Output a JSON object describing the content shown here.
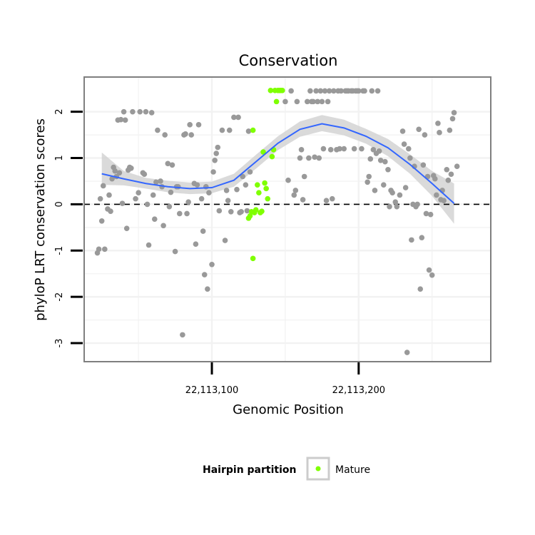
{
  "chart_data": {
    "type": "scatter",
    "title": "Conservation",
    "xlabel": "Genomic Position",
    "ylabel": "phyloP LRT conservation scores",
    "xlim": [
      22113013,
      22113290
    ],
    "ylim": [
      -3.4,
      2.75
    ],
    "x_ticks": [
      {
        "value": 22113100,
        "label": "22,113,100"
      },
      {
        "value": 22113200,
        "label": "22,113,200"
      }
    ],
    "y_ticks": [
      {
        "value": 2,
        "label": "2"
      },
      {
        "value": 1,
        "label": "1"
      },
      {
        "value": 0,
        "label": "0"
      },
      {
        "value": -1,
        "label": "-1"
      },
      {
        "value": -2,
        "label": "-2"
      },
      {
        "value": -3,
        "label": "-3"
      }
    ],
    "grid": true,
    "reference_line": {
      "y": 0,
      "style": "dashed"
    },
    "legend": {
      "title": "Hairpin partition",
      "position": "bottom",
      "entries": [
        {
          "label": "Mature",
          "color": "#7fff00"
        }
      ]
    },
    "colors": {
      "other": "#999999",
      "mature": "#7fff00",
      "smooth": "#3366ff",
      "ribbon": "#d3d3d3",
      "panel_border": "#7f7f7f"
    },
    "smooth": {
      "x": [
        22113025,
        22113040,
        22113055,
        22113070,
        22113085,
        22113100,
        22113115,
        22113130,
        22113145,
        22113160,
        22113175,
        22113190,
        22113205,
        22113220,
        22113235,
        22113250,
        22113265
      ],
      "y": [
        0.66,
        0.55,
        0.45,
        0.38,
        0.34,
        0.36,
        0.52,
        0.92,
        1.32,
        1.62,
        1.74,
        1.65,
        1.47,
        1.22,
        0.86,
        0.45,
        0.02
      ],
      "lower": [
        0.42,
        0.41,
        0.34,
        0.26,
        0.22,
        0.24,
        0.38,
        0.77,
        1.17,
        1.46,
        1.58,
        1.49,
        1.31,
        1.04,
        0.66,
        0.18,
        -0.42
      ],
      "upper": [
        1.12,
        0.72,
        0.57,
        0.51,
        0.47,
        0.49,
        0.66,
        1.07,
        1.47,
        1.79,
        1.93,
        1.83,
        1.63,
        1.41,
        1.08,
        0.72,
        0.45
      ]
    },
    "series": [
      {
        "name": "Mature",
        "color": "#7fff00",
        "points": [
          [
            22113128,
            1.6
          ],
          [
            22113131,
            0.42
          ],
          [
            22113132,
            0.25
          ],
          [
            22113135,
            1.13
          ],
          [
            22113136,
            0.46
          ],
          [
            22113137,
            0.34
          ],
          [
            22113138,
            0.12
          ],
          [
            22113141,
            1.03
          ],
          [
            22113142,
            1.18
          ],
          [
            22113144,
            2.22
          ],
          [
            22113145,
            2.46
          ],
          [
            22113127,
            -0.16
          ],
          [
            22113129,
            -0.18
          ],
          [
            22113130,
            -0.12
          ],
          [
            22113133,
            -0.18
          ],
          [
            22113134,
            -0.15
          ],
          [
            22113125,
            -0.3
          ],
          [
            22113126,
            -0.25
          ],
          [
            22113128,
            -1.17
          ],
          [
            22113140,
            2.46
          ],
          [
            22113143,
            2.46
          ],
          [
            22113146,
            2.46
          ],
          [
            22113147,
            2.46
          ],
          [
            22113148,
            2.46
          ]
        ]
      },
      {
        "name": "",
        "color": "#999999",
        "points": [
          [
            22113022,
            -1.05
          ],
          [
            22113023,
            -0.97
          ],
          [
            22113024,
            0.12
          ],
          [
            22113025,
            -0.36
          ],
          [
            22113026,
            0.4
          ],
          [
            22113027,
            -0.97
          ],
          [
            22113029,
            -0.1
          ],
          [
            22113030,
            0.2
          ],
          [
            22113031,
            -0.15
          ],
          [
            22113032,
            0.55
          ],
          [
            22113033,
            0.8
          ],
          [
            22113034,
            0.72
          ],
          [
            22113035,
            0.6
          ],
          [
            22113036,
            1.82
          ],
          [
            22113037,
            0.68
          ],
          [
            22113038,
            1.83
          ],
          [
            22113039,
            0.02
          ],
          [
            22113040,
            2.0
          ],
          [
            22113041,
            1.82
          ],
          [
            22113042,
            -0.52
          ],
          [
            22113043,
            0.74
          ],
          [
            22113044,
            0.8
          ],
          [
            22113045,
            0.78
          ],
          [
            22113046,
            2.0
          ],
          [
            22113048,
            0.12
          ],
          [
            22113050,
            0.25
          ],
          [
            22113051,
            2.0
          ],
          [
            22113053,
            0.68
          ],
          [
            22113054,
            0.65
          ],
          [
            22113055,
            2.0
          ],
          [
            22113056,
            0.0
          ],
          [
            22113057,
            -0.88
          ],
          [
            22113059,
            1.98
          ],
          [
            22113060,
            0.2
          ],
          [
            22113061,
            -0.32
          ],
          [
            22113062,
            0.48
          ],
          [
            22113063,
            1.6
          ],
          [
            22113065,
            0.5
          ],
          [
            22113066,
            0.38
          ],
          [
            22113067,
            -0.46
          ],
          [
            22113068,
            1.5
          ],
          [
            22113070,
            0.88
          ],
          [
            22113071,
            -0.05
          ],
          [
            22113072,
            0.26
          ],
          [
            22113073,
            0.85
          ],
          [
            22113075,
            -1.02
          ],
          [
            22113076,
            0.38
          ],
          [
            22113077,
            0.38
          ],
          [
            22113078,
            -0.2
          ],
          [
            22113080,
            -2.82
          ],
          [
            22113081,
            1.5
          ],
          [
            22113082,
            1.52
          ],
          [
            22113083,
            -0.2
          ],
          [
            22113084,
            0.05
          ],
          [
            22113085,
            1.72
          ],
          [
            22113086,
            1.5
          ],
          [
            22113088,
            0.45
          ],
          [
            22113089,
            -0.86
          ],
          [
            22113090,
            0.42
          ],
          [
            22113091,
            1.72
          ],
          [
            22113093,
            0.12
          ],
          [
            22113094,
            -0.58
          ],
          [
            22113095,
            -1.52
          ],
          [
            22113096,
            0.38
          ],
          [
            22113097,
            -1.83
          ],
          [
            22113098,
            0.25
          ],
          [
            22113100,
            -1.3
          ],
          [
            22113101,
            0.7
          ],
          [
            22113102,
            0.95
          ],
          [
            22113103,
            1.1
          ],
          [
            22113104,
            1.23
          ],
          [
            22113105,
            -0.14
          ],
          [
            22113107,
            1.6
          ],
          [
            22113109,
            -0.78
          ],
          [
            22113110,
            0.3
          ],
          [
            22113111,
            0.08
          ],
          [
            22113112,
            1.6
          ],
          [
            22113113,
            -0.16
          ],
          [
            22113115,
            1.88
          ],
          [
            22113117,
            0.32
          ],
          [
            22113118,
            1.88
          ],
          [
            22113119,
            -0.18
          ],
          [
            22113120,
            -0.16
          ],
          [
            22113121,
            0.6
          ],
          [
            22113123,
            0.42
          ],
          [
            22113124,
            -0.14
          ],
          [
            22113125,
            1.58
          ],
          [
            22113126,
            0.7
          ],
          [
            22113150,
            2.22
          ],
          [
            22113152,
            0.52
          ],
          [
            22113154,
            2.45
          ],
          [
            22113156,
            0.2
          ],
          [
            22113157,
            0.3
          ],
          [
            22113158,
            2.22
          ],
          [
            22113160,
            1.0
          ],
          [
            22113161,
            1.18
          ],
          [
            22113162,
            0.1
          ],
          [
            22113163,
            0.6
          ],
          [
            22113165,
            2.22
          ],
          [
            22113166,
            1.0
          ],
          [
            22113167,
            2.45
          ],
          [
            22113168,
            2.22
          ],
          [
            22113169,
            2.22
          ],
          [
            22113170,
            1.02
          ],
          [
            22113171,
            2.45
          ],
          [
            22113172,
            2.22
          ],
          [
            22113173,
            1.0
          ],
          [
            22113174,
            2.45
          ],
          [
            22113175,
            2.22
          ],
          [
            22113176,
            1.2
          ],
          [
            22113177,
            2.45
          ],
          [
            22113178,
            0.08
          ],
          [
            22113179,
            2.22
          ],
          [
            22113180,
            2.45
          ],
          [
            22113181,
            1.18
          ],
          [
            22113182,
            0.12
          ],
          [
            22113183,
            2.45
          ],
          [
            22113185,
            1.18
          ],
          [
            22113186,
            2.45
          ],
          [
            22113187,
            1.2
          ],
          [
            22113188,
            2.45
          ],
          [
            22113190,
            1.2
          ],
          [
            22113191,
            2.45
          ],
          [
            22113192,
            2.45
          ],
          [
            22113193,
            2.45
          ],
          [
            22113195,
            2.45
          ],
          [
            22113196,
            2.45
          ],
          [
            22113197,
            1.2
          ],
          [
            22113198,
            2.45
          ],
          [
            22113199,
            2.45
          ],
          [
            22113200,
            2.45
          ],
          [
            22113202,
            1.2
          ],
          [
            22113203,
            2.45
          ],
          [
            22113204,
            2.45
          ],
          [
            22113206,
            0.48
          ],
          [
            22113207,
            0.6
          ],
          [
            22113208,
            0.98
          ],
          [
            22113209,
            2.45
          ],
          [
            22113210,
            1.18
          ],
          [
            22113211,
            0.3
          ],
          [
            22113212,
            1.1
          ],
          [
            22113213,
            2.45
          ],
          [
            22113214,
            1.15
          ],
          [
            22113215,
            0.95
          ],
          [
            22113217,
            0.42
          ],
          [
            22113218,
            0.92
          ],
          [
            22113220,
            0.75
          ],
          [
            22113221,
            -0.05
          ],
          [
            22113222,
            0.3
          ],
          [
            22113223,
            0.25
          ],
          [
            22113225,
            0.05
          ],
          [
            22113226,
            -0.05
          ],
          [
            22113228,
            0.2
          ],
          [
            22113230,
            1.58
          ],
          [
            22113231,
            1.3
          ],
          [
            22113232,
            0.36
          ],
          [
            22113233,
            -3.2
          ],
          [
            22113234,
            1.2
          ],
          [
            22113235,
            1.0
          ],
          [
            22113236,
            -0.77
          ],
          [
            22113237,
            0.0
          ],
          [
            22113238,
            0.82
          ],
          [
            22113239,
            -0.05
          ],
          [
            22113240,
            0.0
          ],
          [
            22113241,
            1.62
          ],
          [
            22113242,
            -1.83
          ],
          [
            22113243,
            -0.72
          ],
          [
            22113244,
            0.85
          ],
          [
            22113245,
            1.5
          ],
          [
            22113246,
            -0.2
          ],
          [
            22113247,
            0.6
          ],
          [
            22113248,
            -1.42
          ],
          [
            22113249,
            -0.22
          ],
          [
            22113250,
            -1.53
          ],
          [
            22113251,
            0.62
          ],
          [
            22113252,
            0.55
          ],
          [
            22113253,
            0.2
          ],
          [
            22113254,
            1.75
          ],
          [
            22113255,
            1.55
          ],
          [
            22113256,
            0.1
          ],
          [
            22113257,
            0.3
          ],
          [
            22113258,
            0.08
          ],
          [
            22113260,
            0.75
          ],
          [
            22113261,
            0.52
          ],
          [
            22113262,
            1.6
          ],
          [
            22113263,
            0.65
          ],
          [
            22113264,
            1.85
          ],
          [
            22113265,
            1.98
          ],
          [
            22113267,
            0.82
          ]
        ]
      }
    ]
  }
}
